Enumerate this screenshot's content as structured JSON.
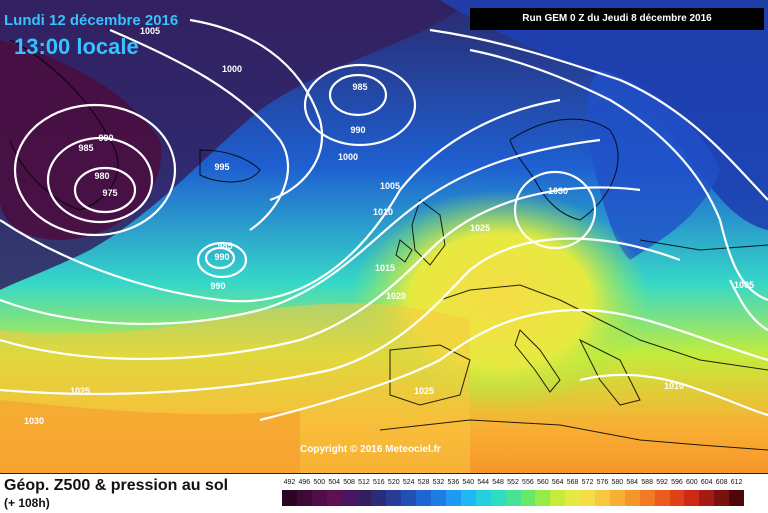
{
  "header": {
    "date": "Lundi 12 décembre 2016",
    "time": "13:00 locale",
    "run": "Run GEM 0 Z du Jeudi 8 décembre 2016"
  },
  "copyright": "Copyright © 2016 Meteociel.fr",
  "footer": {
    "title": "Géop. Z500 & pression au sol",
    "subtitle": "(+ 108h)"
  },
  "map": {
    "isobar_labels": [
      "1005",
      "1000",
      "985",
      "990",
      "985",
      "980",
      "975",
      "990",
      "1000",
      "995",
      "985",
      "990",
      "990",
      "1005",
      "1010",
      "1015",
      "1020",
      "1025",
      "1025",
      "1030",
      "1025",
      "1030",
      "1005",
      "1010"
    ],
    "colors": {
      "land_outline": "#000000",
      "isobar": "#ffffff"
    }
  },
  "legend": {
    "values": [
      "492",
      "496",
      "500",
      "504",
      "508",
      "512",
      "516",
      "520",
      "524",
      "528",
      "532",
      "536",
      "540",
      "544",
      "548",
      "552",
      "556",
      "560",
      "564",
      "568",
      "572",
      "576",
      "580",
      "584",
      "588",
      "592",
      "596",
      "600",
      "604",
      "608",
      "612"
    ],
    "colors": [
      "#2a0622",
      "#3c0a34",
      "#500e46",
      "#5e1052",
      "#46165e",
      "#32205e",
      "#2a2c7a",
      "#263c96",
      "#2050b4",
      "#1e64d2",
      "#1e7ce6",
      "#1e9af2",
      "#20b8f0",
      "#22d0e0",
      "#30dcc0",
      "#48e296",
      "#6ae668",
      "#98ea48",
      "#c4ec3c",
      "#e6ea40",
      "#f6dc46",
      "#f8c840",
      "#f8b034",
      "#f6962a",
      "#f27a24",
      "#ec5c1e",
      "#e0401a",
      "#cc2a16",
      "#a41a14",
      "#7a1010",
      "#4c0808"
    ]
  }
}
